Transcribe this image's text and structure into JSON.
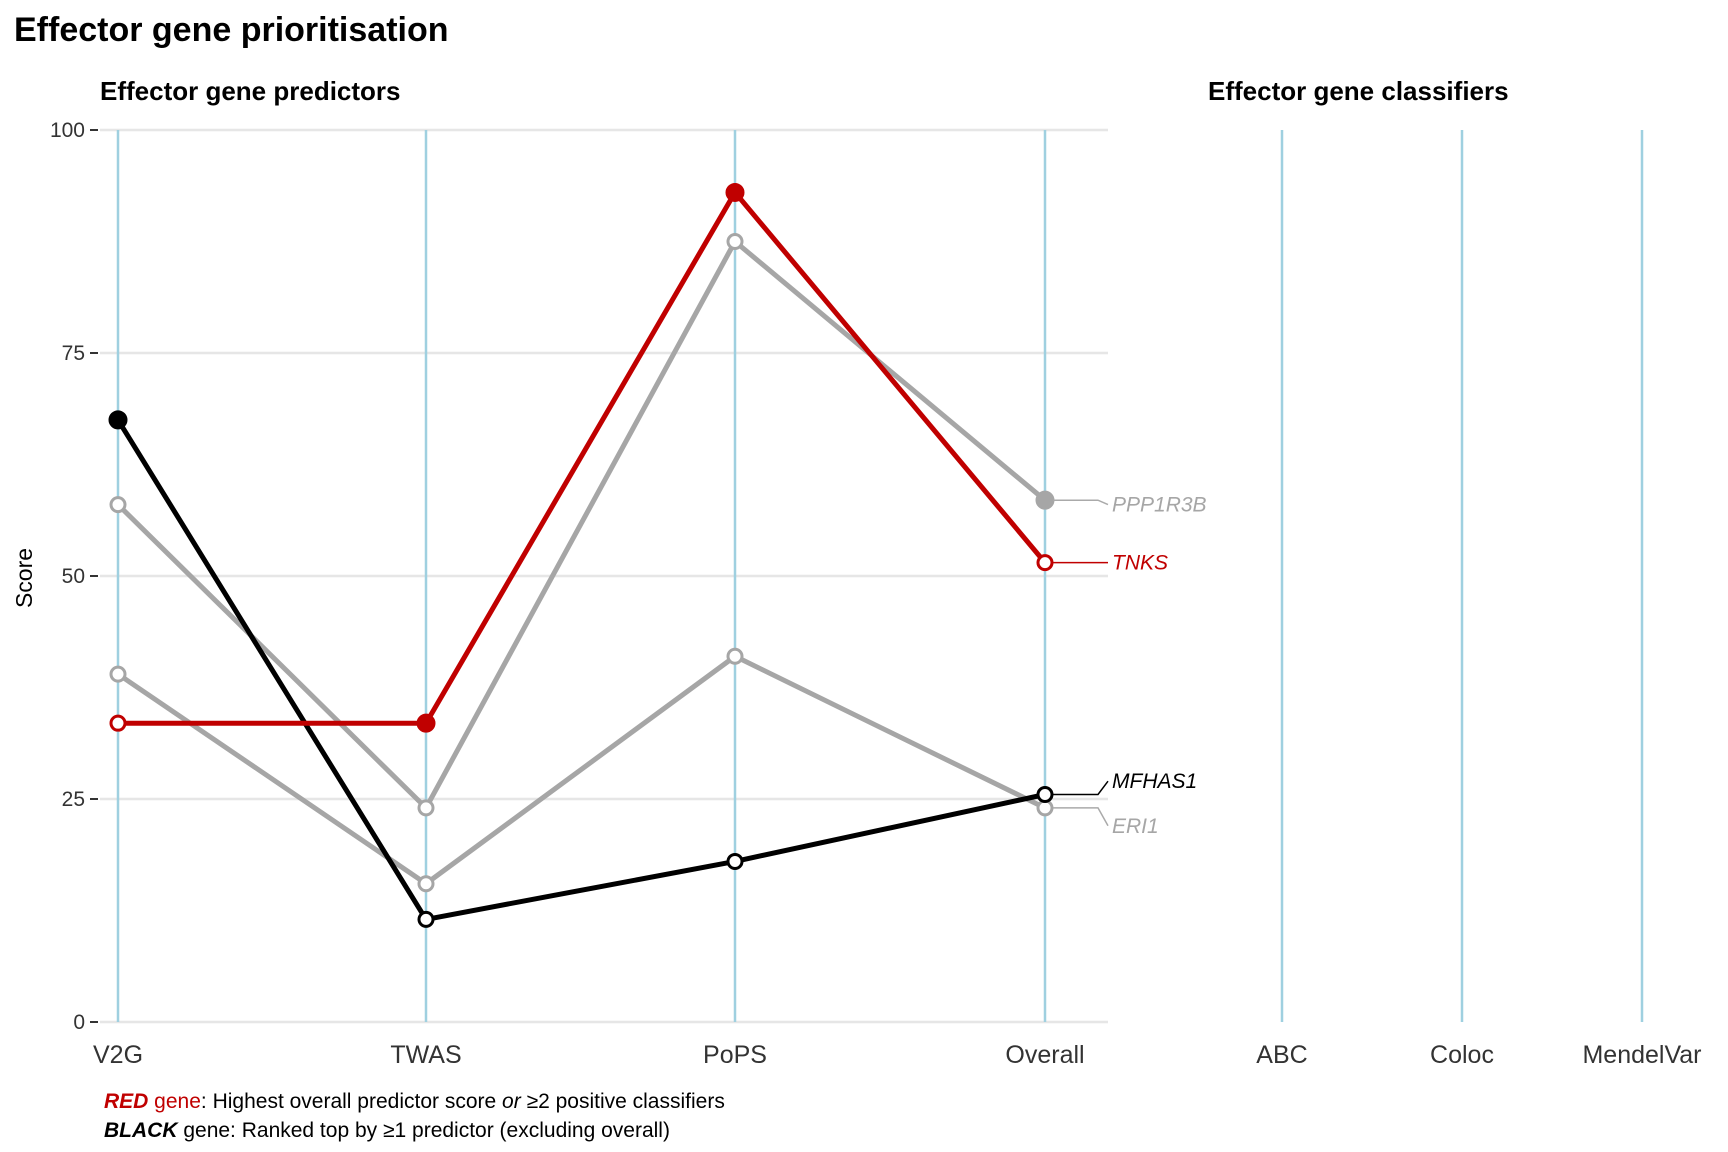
{
  "title": "Effector gene prioritisation",
  "legend": {
    "red_word": "RED",
    "red_gene": " gene",
    "red_text_a": ": Highest overall predictor score ",
    "red_or": "or",
    "red_text_b": " ≥2 positive classifiers",
    "black_word": "BLACK",
    "black_text": " gene: Ranked top by ≥1 predictor (excluding overall)"
  },
  "colors": {
    "red": "#c00000",
    "black": "#000000",
    "grey": "#a6a6a6",
    "axis_line": "#9fd0e0",
    "grid": "#e6e6e6"
  },
  "chart_data": [
    {
      "type": "line",
      "title": "Effector gene predictors",
      "ylabel": "Score",
      "xlabel": "",
      "categories": [
        "V2G",
        "TWAS",
        "PoPS",
        "Overall"
      ],
      "ylim": [
        0,
        100
      ],
      "yticks": [
        0,
        25,
        50,
        75,
        100
      ],
      "grid": true,
      "series": [
        {
          "name": "PPP1R3B",
          "color": "grey",
          "values": [
            58,
            24,
            87.5,
            58.5
          ],
          "filled": [
            false,
            false,
            false,
            true
          ]
        },
        {
          "name": "ERI1",
          "color": "grey",
          "values": [
            39,
            15.5,
            41,
            24
          ],
          "filled": [
            false,
            false,
            false,
            false
          ]
        },
        {
          "name": "MFHAS1",
          "color": "black",
          "values": [
            67.5,
            11.5,
            18,
            25.5
          ],
          "filled": [
            true,
            false,
            false,
            false
          ]
        },
        {
          "name": "TNKS",
          "color": "red",
          "values": [
            33.5,
            33.5,
            93,
            51.5
          ],
          "filled": [
            false,
            true,
            true,
            false
          ]
        }
      ]
    },
    {
      "type": "line",
      "title": "Effector gene classifiers",
      "categories": [
        "ABC",
        "Coloc",
        "MendelVar"
      ],
      "series": []
    }
  ]
}
